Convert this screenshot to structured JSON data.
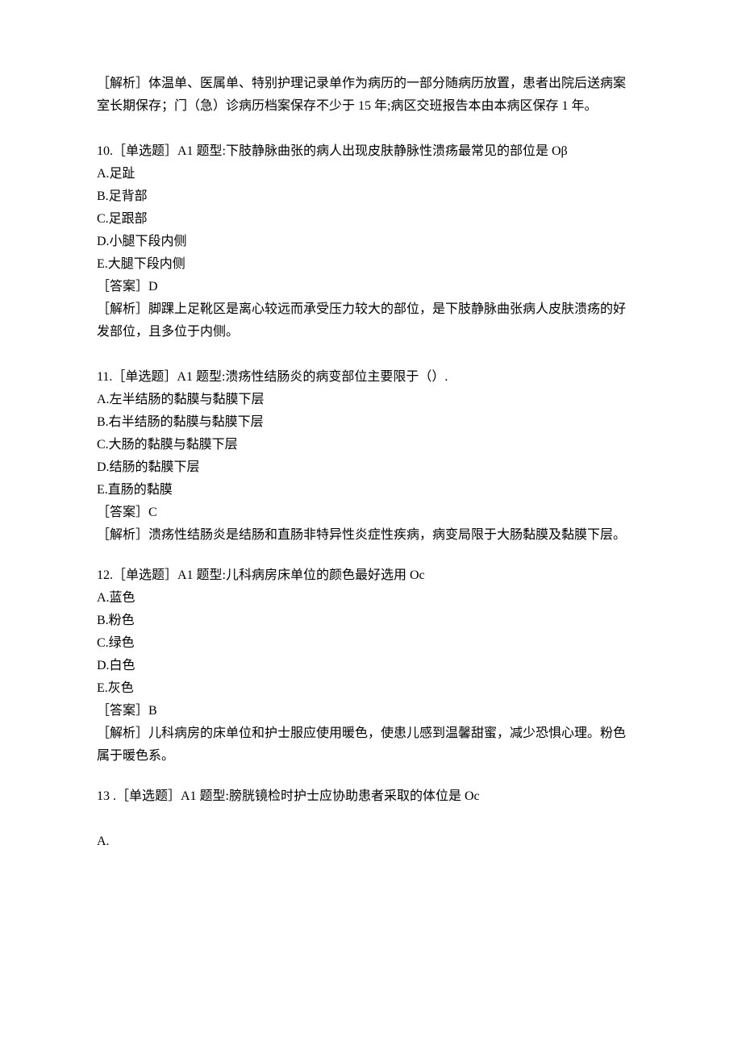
{
  "q9_analysis": {
    "label": "［解析］",
    "text_line1": "体温单、医属单、特别护理记录单作为病历的一部分随病历放置，患者出院后送病案",
    "text_line2": "室长期保存；门（急）诊病历档案保存不少于 15 年;病区交班报告本由本病区保存 1 年。"
  },
  "q10": {
    "stem": "10.［单选题］A1 题型:下肢静脉曲张的病人出现皮肤静脉性溃疡最常见的部位是 Oβ",
    "A": "A.足趾",
    "B": "B.足背部",
    "C": "C.足跟部",
    "D": "D.小腿下段内侧",
    "E": "E.大腿下段内侧",
    "answer": "［答案］D",
    "analysis_line1": "［解析］脚踝上足靴区是离心较远而承受压力较大的部位，是下肢静脉曲张病人皮肤溃疡的好",
    "analysis_line2": "发部位，且多位于内侧。"
  },
  "q11": {
    "stem": "11.［单选题］A1 题型:溃疡性结肠炎的病变部位主要限于（）.",
    "A": "A.左半结肠的黏膜与黏膜下层",
    "B": "B.右半结肠的黏膜与黏膜下层",
    "C": "C.大肠的黏膜与黏膜下层",
    "D": "D.结肠的黏膜下层",
    "E": "E.直肠的黏膜",
    "answer": "［答案］C",
    "analysis": "［解析］溃疡性结肠炎是结肠和直肠非特异性炎症性疾病，病变局限于大肠黏膜及黏膜下层。"
  },
  "q12": {
    "stem": "12.［单选题］A1 题型:儿科病房床单位的颜色最好选用 Oc",
    "A": "A.蓝色",
    "B": "B.粉色",
    "C": "C.绿色",
    "D": "D.白色",
    "E": "E.灰色",
    "answer": "［答案］B",
    "analysis_line1": "［解析］儿科病房的床单位和护士服应使用暖色，使患儿感到温馨甜蜜，减少恐惧心理。粉色",
    "analysis_line2": "属于暖色系。"
  },
  "q13": {
    "stem": "13  .［单选题］A1 题型:膀胱镜检时护士应协助患者采取的体位是 Oc",
    "A": "A."
  }
}
